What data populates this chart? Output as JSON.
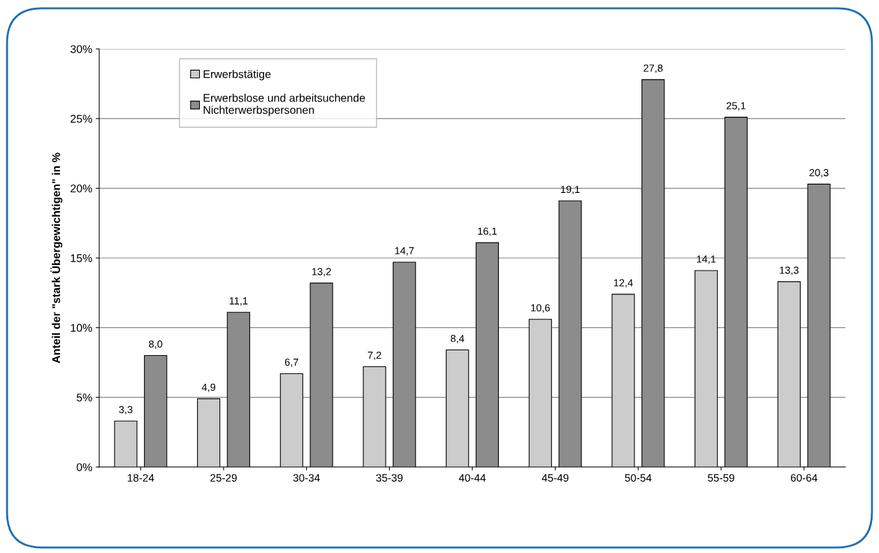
{
  "chart_data": {
    "type": "bar",
    "ylabel": "Anteil der \"stark Übergewichtigen\" in %",
    "categories": [
      "18-24",
      "25-29",
      "30-34",
      "35-39",
      "40-44",
      "45-49",
      "50-54",
      "55-59",
      "60-64"
    ],
    "series": [
      {
        "name": "Erwerbstätige",
        "color": "#cccccc",
        "values": [
          3.3,
          4.9,
          6.7,
          7.2,
          8.4,
          10.6,
          12.4,
          14.1,
          13.3
        ],
        "value_labels": [
          "3,3",
          "4,9",
          "6,7",
          "7,2",
          "8,4",
          "10,6",
          "12,4",
          "14,1",
          "13,3"
        ]
      },
      {
        "name": "Erwerbslose und arbeitsuchende\nNichterwerbspersonen",
        "color": "#8c8c8c",
        "values": [
          8.0,
          11.1,
          13.2,
          14.7,
          16.1,
          19.1,
          27.8,
          25.1,
          20.3
        ],
        "value_labels": [
          "8,0",
          "11,1",
          "13,2",
          "14,7",
          "16,1",
          "19,1",
          "27,8",
          "25,1",
          "20,3"
        ]
      }
    ],
    "ylim": [
      0,
      30
    ],
    "yticks": [
      {
        "value": 0,
        "label": "0%"
      },
      {
        "value": 5,
        "label": "5%"
      },
      {
        "value": 10,
        "label": "10%"
      },
      {
        "value": 15,
        "label": "15%"
      },
      {
        "value": 20,
        "label": "20%"
      },
      {
        "value": 25,
        "label": "25%"
      },
      {
        "value": 30,
        "label": "30%"
      }
    ],
    "grid": "y",
    "legend": "top left"
  }
}
